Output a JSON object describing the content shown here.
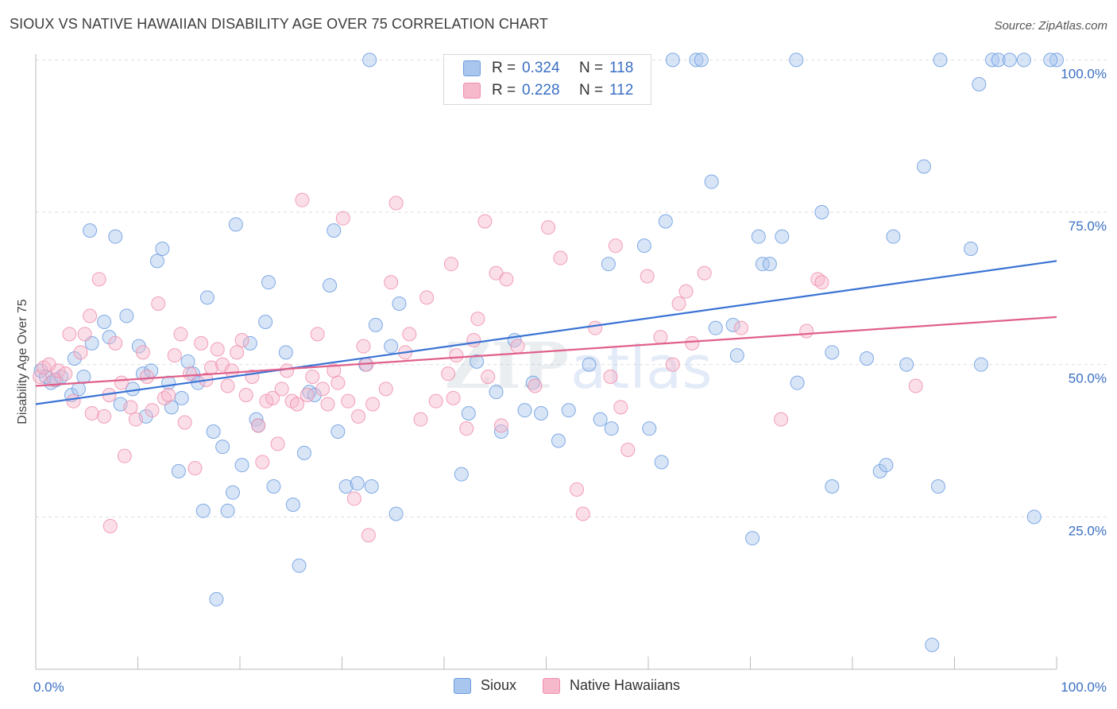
{
  "header": {
    "title": "SIOUX VS NATIVE HAWAIIAN DISABILITY AGE OVER 75 CORRELATION CHART",
    "source": "Source: ZipAtlas.com"
  },
  "legend": {
    "rows": [
      {
        "r_label": "R =",
        "r_value": "0.324",
        "n_label": "N =",
        "n_value": "118",
        "color": "#a9c6ee"
      },
      {
        "r_label": "R =",
        "r_value": "0.228",
        "n_label": "N =",
        "n_value": "112",
        "color": "#f6b8cb"
      }
    ]
  },
  "bottom_legend": {
    "items": [
      {
        "label": "Sioux",
        "color": "#a9c6ee"
      },
      {
        "label": "Native Hawaiians",
        "color": "#f6b8cb"
      }
    ]
  },
  "watermark": {
    "zip": "ZIP",
    "atlas": "atlas"
  },
  "chart_data": {
    "type": "scatter",
    "xlabel": "",
    "ylabel": "Disability Age Over 75",
    "xlim": [
      0,
      100
    ],
    "ylim": [
      0,
      102
    ],
    "x_tick_labels": [
      "0.0%",
      "100.0%"
    ],
    "y_ticks": [
      {
        "value": 25,
        "label": "25.0%"
      },
      {
        "value": 50,
        "label": "50.0%"
      },
      {
        "value": 75,
        "label": "75.0%"
      },
      {
        "value": 100,
        "label": "100.0%"
      }
    ],
    "grid": "horizontal dashed",
    "series": [
      {
        "name": "Sioux",
        "color": "#6b9ce0",
        "fill": "#a9c6ee",
        "trend": {
          "x": [
            0,
            100
          ],
          "y": [
            43.5,
            67.0
          ],
          "color": "#3a73d4"
        },
        "points": [
          [
            0.5,
            49
          ],
          [
            1.0,
            48
          ],
          [
            1.5,
            47
          ],
          [
            2.0,
            47.5
          ],
          [
            2.5,
            48
          ],
          [
            3.5,
            45
          ],
          [
            3.8,
            51
          ],
          [
            4.2,
            46
          ],
          [
            4.7,
            48
          ],
          [
            5.5,
            53.5
          ],
          [
            5.3,
            72
          ],
          [
            6.7,
            57
          ],
          [
            7.2,
            54.5
          ],
          [
            7.8,
            71
          ],
          [
            8.3,
            43.5
          ],
          [
            8.9,
            58
          ],
          [
            9.5,
            46
          ],
          [
            10.1,
            53
          ],
          [
            10.8,
            41.5
          ],
          [
            10.5,
            48.5
          ],
          [
            11.3,
            49
          ],
          [
            11.9,
            67
          ],
          [
            12.4,
            69
          ],
          [
            13.0,
            47
          ],
          [
            13.3,
            43
          ],
          [
            14.0,
            32.5
          ],
          [
            14.3,
            44.5
          ],
          [
            14.9,
            50.5
          ],
          [
            15.4,
            48.5
          ],
          [
            15.9,
            47
          ],
          [
            16.4,
            26
          ],
          [
            16.8,
            61
          ],
          [
            17.4,
            39
          ],
          [
            18.3,
            36.5
          ],
          [
            18.8,
            26
          ],
          [
            19.3,
            29
          ],
          [
            19.6,
            73
          ],
          [
            20.2,
            33.5
          ],
          [
            21.0,
            53.5
          ],
          [
            21.6,
            41
          ],
          [
            21.8,
            40
          ],
          [
            22.5,
            57
          ],
          [
            22.8,
            63.5
          ],
          [
            23.3,
            30
          ],
          [
            24.5,
            52
          ],
          [
            25.2,
            27
          ],
          [
            25.8,
            17
          ],
          [
            26.3,
            35.5
          ],
          [
            26.8,
            45.5
          ],
          [
            27.3,
            45
          ],
          [
            17.7,
            11.5
          ],
          [
            28.8,
            63
          ],
          [
            29.6,
            39
          ],
          [
            29.2,
            72
          ],
          [
            30.4,
            30
          ],
          [
            31.5,
            30.5
          ],
          [
            32.3,
            50
          ],
          [
            32.7,
            100
          ],
          [
            32.9,
            30
          ],
          [
            33.3,
            56.5
          ],
          [
            34.8,
            53
          ],
          [
            35.3,
            25.5
          ],
          [
            35.6,
            60
          ],
          [
            41.7,
            32
          ],
          [
            42.4,
            42
          ],
          [
            43.2,
            50.5
          ],
          [
            45.1,
            45.5
          ],
          [
            45.6,
            39
          ],
          [
            46.9,
            54
          ],
          [
            47.9,
            42.5
          ],
          [
            48.7,
            47
          ],
          [
            49.5,
            42
          ],
          [
            51.2,
            37.5
          ],
          [
            52.2,
            42.5
          ],
          [
            54.2,
            50
          ],
          [
            55.3,
            41
          ],
          [
            56.1,
            66.5
          ],
          [
            56.4,
            39.5
          ],
          [
            60.1,
            39.5
          ],
          [
            59.6,
            69.5
          ],
          [
            61.3,
            34
          ],
          [
            61.7,
            73.5
          ],
          [
            62.4,
            100
          ],
          [
            64.7,
            100
          ],
          [
            65.2,
            100
          ],
          [
            66.6,
            56
          ],
          [
            66.2,
            80
          ],
          [
            68.3,
            56.5
          ],
          [
            68.7,
            51.5
          ],
          [
            70.2,
            21.5
          ],
          [
            70.8,
            71
          ],
          [
            71.2,
            66.5
          ],
          [
            71.9,
            66.5
          ],
          [
            73.1,
            71
          ],
          [
            74.5,
            100
          ],
          [
            74.6,
            47
          ],
          [
            77.0,
            75
          ],
          [
            78.0,
            30
          ],
          [
            78.0,
            52
          ],
          [
            81.4,
            51
          ],
          [
            82.7,
            32.5
          ],
          [
            83.3,
            33.5
          ],
          [
            84.0,
            71
          ],
          [
            85.3,
            50
          ],
          [
            87.0,
            82.5
          ],
          [
            87.8,
            4
          ],
          [
            88.4,
            30
          ],
          [
            88.6,
            100
          ],
          [
            91.6,
            69
          ],
          [
            92.4,
            96
          ],
          [
            92.6,
            50
          ],
          [
            93.7,
            100
          ],
          [
            94.3,
            100
          ],
          [
            95.4,
            100
          ],
          [
            97.8,
            25
          ],
          [
            96.8,
            100
          ],
          [
            100,
            100
          ],
          [
            99.4,
            100
          ]
        ]
      },
      {
        "name": "Native Hawaiians",
        "color": "#ee8fab",
        "fill": "#f6b8cb",
        "trend": {
          "x": [
            0,
            100
          ],
          "y": [
            46.5,
            57.8
          ],
          "color": "#e0608a"
        },
        "points": [
          [
            0.4,
            48
          ],
          [
            0.8,
            49.5
          ],
          [
            1.3,
            50
          ],
          [
            1.8,
            47.5
          ],
          [
            2.2,
            49
          ],
          [
            2.9,
            48.5
          ],
          [
            3.3,
            55
          ],
          [
            3.7,
            44
          ],
          [
            4.4,
            52
          ],
          [
            4.8,
            55
          ],
          [
            5.3,
            58
          ],
          [
            5.5,
            42
          ],
          [
            6.2,
            64
          ],
          [
            6.7,
            41.5
          ],
          [
            7.2,
            45
          ],
          [
            7.8,
            53.5
          ],
          [
            8.4,
            47
          ],
          [
            8.7,
            35
          ],
          [
            9.3,
            43
          ],
          [
            9.8,
            41
          ],
          [
            7.3,
            23.5
          ],
          [
            10.5,
            52
          ],
          [
            10.9,
            48
          ],
          [
            11.4,
            42.5
          ],
          [
            12.0,
            60
          ],
          [
            12.6,
            44.5
          ],
          [
            13.0,
            45
          ],
          [
            13.6,
            51.5
          ],
          [
            14.2,
            55
          ],
          [
            14.6,
            40.5
          ],
          [
            15.1,
            48.5
          ],
          [
            15.6,
            33
          ],
          [
            16.2,
            53.5
          ],
          [
            16.7,
            47.5
          ],
          [
            17.2,
            49.5
          ],
          [
            17.8,
            52.5
          ],
          [
            18.3,
            50
          ],
          [
            18.8,
            46.5
          ],
          [
            19.2,
            49
          ],
          [
            19.7,
            52
          ],
          [
            20.2,
            54
          ],
          [
            20.6,
            45
          ],
          [
            21.2,
            48
          ],
          [
            21.8,
            40
          ],
          [
            22.2,
            34
          ],
          [
            22.6,
            44
          ],
          [
            23.2,
            44.5
          ],
          [
            23.7,
            37
          ],
          [
            24.1,
            46
          ],
          [
            24.6,
            49
          ],
          [
            25.1,
            44
          ],
          [
            25.6,
            43.5
          ],
          [
            26.1,
            77
          ],
          [
            26.6,
            45
          ],
          [
            27.1,
            48
          ],
          [
            27.6,
            55
          ],
          [
            28.1,
            46
          ],
          [
            28.6,
            43.5
          ],
          [
            29.2,
            49
          ],
          [
            29.6,
            47
          ],
          [
            30.1,
            74
          ],
          [
            30.6,
            44
          ],
          [
            31.2,
            28
          ],
          [
            31.6,
            41.5
          ],
          [
            32.1,
            53
          ],
          [
            32.4,
            50
          ],
          [
            32.6,
            22
          ],
          [
            33.0,
            43.5
          ],
          [
            34.3,
            46
          ],
          [
            34.8,
            63.5
          ],
          [
            35.3,
            76.5
          ],
          [
            36.2,
            52
          ],
          [
            36.6,
            55
          ],
          [
            37.7,
            41
          ],
          [
            38.3,
            61
          ],
          [
            39.2,
            44
          ],
          [
            40.4,
            48.5
          ],
          [
            40.9,
            44.5
          ],
          [
            40.7,
            66.5
          ],
          [
            41.2,
            51.5
          ],
          [
            42.2,
            39.5
          ],
          [
            42.9,
            54
          ],
          [
            43.3,
            57.5
          ],
          [
            44.0,
            73.5
          ],
          [
            44.3,
            48
          ],
          [
            45.1,
            65
          ],
          [
            45.6,
            40
          ],
          [
            46.1,
            64
          ],
          [
            47.2,
            53
          ],
          [
            48.9,
            46.5
          ],
          [
            50.2,
            72.5
          ],
          [
            51.4,
            67.5
          ],
          [
            53.0,
            29.5
          ],
          [
            53.6,
            25.5
          ],
          [
            54.8,
            56
          ],
          [
            56.3,
            48
          ],
          [
            56.8,
            69.5
          ],
          [
            57.3,
            43
          ],
          [
            58.0,
            36
          ],
          [
            59.9,
            64.5
          ],
          [
            61.2,
            54.5
          ],
          [
            62.4,
            50
          ],
          [
            63.0,
            60
          ],
          [
            63.7,
            62
          ],
          [
            64.3,
            53.5
          ],
          [
            65.5,
            65
          ],
          [
            69.1,
            56
          ],
          [
            75.5,
            55.5
          ],
          [
            76.6,
            64
          ],
          [
            77.0,
            63.5
          ],
          [
            73.0,
            41
          ],
          [
            86.2,
            46.5
          ]
        ]
      }
    ]
  }
}
